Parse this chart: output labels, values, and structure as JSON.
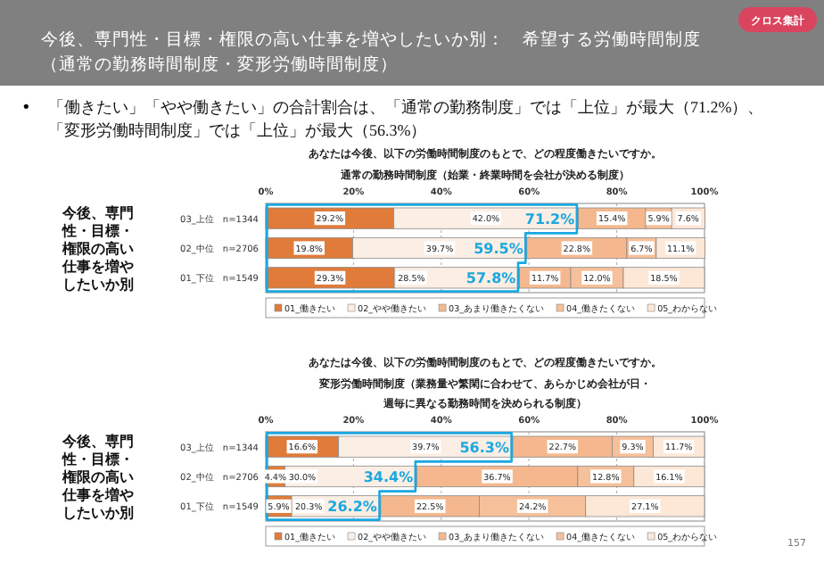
{
  "chart_data": [
    {
      "type": "other",
      "title": "今後、専門性・目標・権限の高い仕事を増やしたいか別：　希望する労働時間制度",
      "subtitle": "（通常の勤務時間制度・変形労働時間制度）",
      "annotations": [
        "クロス集計",
        "•",
        "「働きたい」「やや働きたい」の合計割合は、「通常の勤務制度」では「上位」が最大（71.2%）、「変形労働時間制度」では「上位」が最大（56.3%）",
        "157"
      ]
    },
    {
      "type": "bar",
      "orientation": "horizontal",
      "stacked": true,
      "title": "あなたは今後、以下の労働時間制度のもとで、どの程度働きたいですか。",
      "subtitle": "通常の勤務時間制度（始業・終業時間を会社が決める制度）",
      "ylabel": "今後、専門性・目標・権限の高い仕事を増やしたいか別",
      "categories": [
        "03_上位　n=1344",
        "02_中位　n=2706",
        "01_下位　n=1549"
      ],
      "series": [
        {
          "name": "01_働きたい",
          "color": "#e07b39",
          "values": [
            29.2,
            19.8,
            29.3
          ],
          "value_labels": [
            "29.2%",
            "19.8%",
            "29.3%"
          ]
        },
        {
          "name": "02_やや働きたい",
          "color": "#fbeee4",
          "values": [
            42.0,
            39.7,
            28.5
          ],
          "value_labels": [
            "42.0%",
            "39.7%",
            "28.5%"
          ]
        },
        {
          "name": "03_あまり働きたくない",
          "color": "#f5b88e",
          "values": [
            15.4,
            22.8,
            11.7
          ],
          "value_labels": [
            "15.4%",
            "22.8%",
            "11.7%"
          ]
        },
        {
          "name": "04_働きたくない",
          "color": "#f6c09a",
          "values": [
            5.9,
            6.7,
            12.0
          ],
          "value_labels": [
            "5.9%",
            "6.7%",
            "12.0%"
          ]
        },
        {
          "name": "05_わからない",
          "color": "#fde7d6",
          "values": [
            7.6,
            11.1,
            18.5
          ],
          "value_labels": [
            "7.6%",
            "11.1%",
            "18.5%"
          ]
        }
      ],
      "xlim": [
        0,
        100
      ],
      "xticks": [
        {
          "value": 0,
          "label": "0%"
        },
        {
          "value": 20,
          "label": "20%"
        },
        {
          "value": 40,
          "label": "40%"
        },
        {
          "value": 60,
          "label": "60%"
        },
        {
          "value": 80,
          "label": "80%"
        },
        {
          "value": 100,
          "label": "100%"
        }
      ],
      "grid": "x",
      "legend": "bottom",
      "annotations": [
        {
          "text": "71.2%",
          "x": 71.2,
          "y": "03_上位　n=1344"
        },
        {
          "text": "59.5%",
          "x": 59.5,
          "y": "02_中位　n=2706"
        },
        {
          "text": "57.8%",
          "x": 57.8,
          "y": "01_下位　n=1549"
        }
      ]
    },
    {
      "type": "bar",
      "orientation": "horizontal",
      "stacked": true,
      "title": "あなたは今後、以下の労働時間制度のもとで、どの程度働きたいですか。",
      "subtitle": "変形労働時間制度（業務量や繁閑に合わせて、あらかじめ会社が日・週毎に異なる勤務時間を決められる制度）",
      "ylabel": "今後、専門性・目標・権限の高い仕事を増やしたいか別",
      "categories": [
        "03_上位　n=1344",
        "02_中位　n=2706",
        "01_下位　n=1549"
      ],
      "series": [
        {
          "name": "01_働きたい",
          "color": "#e07b39",
          "values": [
            16.6,
            4.4,
            5.9
          ],
          "value_labels": [
            "16.6%",
            "4.4%",
            "5.9%"
          ]
        },
        {
          "name": "02_やや働きたい",
          "color": "#fbeee4",
          "values": [
            39.7,
            30.0,
            20.3
          ],
          "value_labels": [
            "39.7%",
            "30.0%",
            "20.3%"
          ]
        },
        {
          "name": "03_あまり働きたくない",
          "color": "#f5b88e",
          "values": [
            22.7,
            36.7,
            22.5
          ],
          "value_labels": [
            "22.7%",
            "36.7%",
            "22.5%"
          ]
        },
        {
          "name": "04_働きたくない",
          "color": "#f6c09a",
          "values": [
            9.3,
            12.8,
            24.2
          ],
          "value_labels": [
            "9.3%",
            "12.8%",
            "24.2%"
          ]
        },
        {
          "name": "05_わからない",
          "color": "#fde7d6",
          "values": [
            11.7,
            16.1,
            27.1
          ],
          "value_labels": [
            "11.7%",
            "16.1%",
            "27.1%"
          ]
        }
      ],
      "xlim": [
        0,
        100
      ],
      "xticks": [
        {
          "value": 0,
          "label": "0%"
        },
        {
          "value": 20,
          "label": "20%"
        },
        {
          "value": 40,
          "label": "40%"
        },
        {
          "value": 60,
          "label": "60%"
        },
        {
          "value": 80,
          "label": "80%"
        },
        {
          "value": 100,
          "label": "100%"
        }
      ],
      "grid": "x",
      "legend": "bottom",
      "annotations": [
        {
          "text": "56.3%",
          "x": 56.3,
          "y": "03_上位　n=1344"
        },
        {
          "text": "34.4%",
          "x": 34.4,
          "y": "02_中位　n=2706"
        },
        {
          "text": "26.2%",
          "x": 26.2,
          "y": "01_下位　n=1549"
        }
      ]
    }
  ]
}
